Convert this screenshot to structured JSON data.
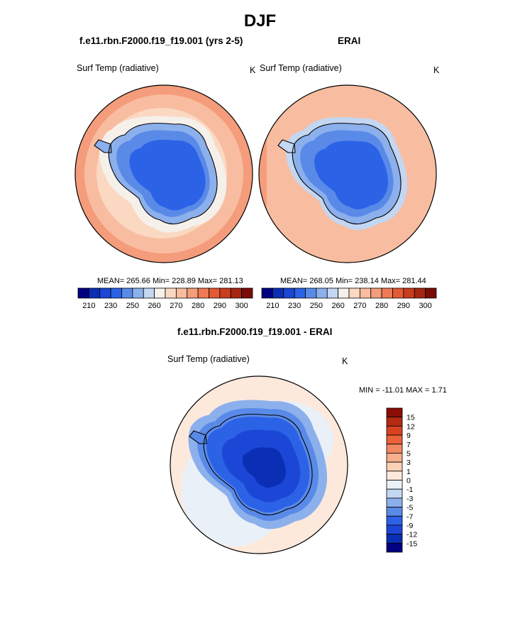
{
  "page_title": "DJF",
  "panels": {
    "left": {
      "title": "f.e11.rbn.F2000.f19_f19.001 (yrs 2-5)",
      "variable": "Surf Temp (radiative)",
      "units": "K",
      "stats": "MEAN= 265.66  Min= 228.89  Max= 281.13"
    },
    "right": {
      "title": "ERAI",
      "variable": "Surf Temp (radiative)",
      "units": "K",
      "stats": "MEAN= 268.05  Min= 238.14  Max= 281.44"
    },
    "diff": {
      "title": "f.e11.rbn.F2000.f19_f19.001 - ERAI",
      "variable": "Surf Temp (radiative)",
      "units": "K",
      "stats": "MIN = -11.01 MAX =   1.71"
    }
  },
  "colorbars": {
    "abs": {
      "colors": [
        "#000080",
        "#0a2fb5",
        "#1c47d6",
        "#2c62e6",
        "#5a8ae8",
        "#8cb0ec",
        "#c3d6f2",
        "#f5f0ea",
        "#fbd8c2",
        "#f8bda0",
        "#f49c7b",
        "#ef7a55",
        "#e35a33",
        "#c93d1f",
        "#a62612",
        "#7a0c06"
      ],
      "labels": [
        "210",
        "230",
        "250",
        "260",
        "270",
        "280",
        "290",
        "300"
      ]
    },
    "diff": {
      "colors": [
        "#000080",
        "#0a2fb5",
        "#1c47d6",
        "#2c62e6",
        "#5a8ae8",
        "#8cb0ec",
        "#c3d6f2",
        "#e9f0f8",
        "#fde9dc",
        "#fbd0b6",
        "#f6ae8c",
        "#f18862",
        "#eb6339",
        "#d84220",
        "#b42a14",
        "#8a0e06"
      ],
      "labels": [
        "15",
        "12",
        "9",
        "7",
        "5",
        "3",
        "1",
        "0",
        "-1",
        "-3",
        "-5",
        "-7",
        "-9",
        "-12",
        "-15"
      ]
    }
  },
  "chart_data": [
    {
      "type": "heatmap",
      "title": "f.e11.rbn.F2000.f19_f19.001 (yrs 2-5)",
      "variable": "Surf Temp (radiative)",
      "units": "K",
      "projection": "south polar stereographic",
      "mean": 265.66,
      "min": 228.89,
      "max": 281.13,
      "colorbar_ticks": [
        210,
        230,
        250,
        260,
        270,
        280,
        290,
        300
      ]
    },
    {
      "type": "heatmap",
      "title": "ERAI",
      "variable": "Surf Temp (radiative)",
      "units": "K",
      "projection": "south polar stereographic",
      "mean": 268.05,
      "min": 238.14,
      "max": 281.44,
      "colorbar_ticks": [
        210,
        230,
        250,
        260,
        270,
        280,
        290,
        300
      ]
    },
    {
      "type": "heatmap",
      "title": "f.e11.rbn.F2000.f19_f19.001 - ERAI",
      "variable": "Surf Temp (radiative)",
      "units": "K",
      "projection": "south polar stereographic",
      "min": -11.01,
      "max": 1.71,
      "colorbar_ticks": [
        -15,
        -12,
        -9,
        -7,
        -5,
        -3,
        -1,
        0,
        1,
        3,
        5,
        7,
        9,
        12,
        15
      ]
    }
  ]
}
